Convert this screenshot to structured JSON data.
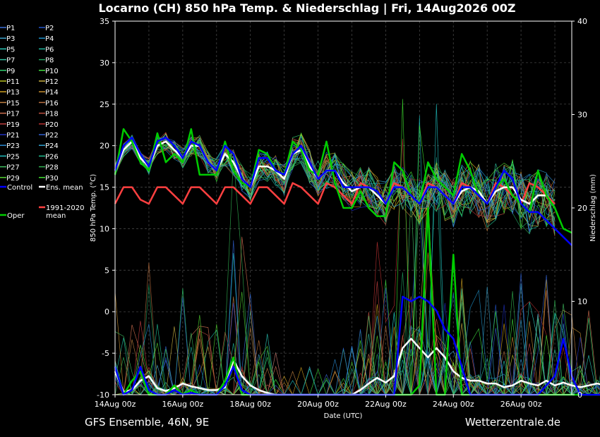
{
  "chart_data": {
    "type": "line",
    "title": "Locarno  (CH)  850 hPa Temp. & Niederschlag | Fri, 14Aug2026 00Z",
    "xlabel": "Date (UTC)",
    "ylabel": "850 hPa Temp. (°C)",
    "y2label": "Niederschlag (mm)",
    "footer_left": "GFS Ensemble, 46N, 9E",
    "footer_right": "Wetterzentrale.de",
    "ylim": [
      -10,
      35
    ],
    "y2lim": [
      0,
      40
    ],
    "yticks": [
      -10,
      -5,
      0,
      5,
      10,
      15,
      20,
      25,
      30,
      35
    ],
    "y2ticks": [
      0,
      10,
      20,
      30,
      40
    ],
    "xlim": [
      "14Aug 00z",
      "27Aug 12z"
    ],
    "xticks": [
      "14Aug 00z",
      "16Aug 00z",
      "18Aug 00z",
      "20Aug 00z",
      "22Aug 00z",
      "24Aug 00z",
      "26Aug 00z"
    ],
    "x_step": "6h",
    "grid": true,
    "legend_position": "left",
    "legend": [
      "P1",
      "P2",
      "P3",
      "P4",
      "P5",
      "P6",
      "P7",
      "P8",
      "P9",
      "P10",
      "P11",
      "P12",
      "P13",
      "P14",
      "P15",
      "P16",
      "P17",
      "P18",
      "P19",
      "P20",
      "P21",
      "P22",
      "P23",
      "P24",
      "P25",
      "P26",
      "P27",
      "P28",
      "P29",
      "P30",
      "Control",
      "Ens. mean",
      "Oper",
      "1991-2020 mean"
    ],
    "legend_colors": [
      "#3a6fd8",
      "#2255cc",
      "#3aa0c8",
      "#1e90c8",
      "#2ac8b8",
      "#20b8a0",
      "#30c0a0",
      "#20a060",
      "#30d070",
      "#40e040",
      "#b8c020",
      "#c8b040",
      "#d0a020",
      "#c89030",
      "#c08040",
      "#b87040",
      "#d07050",
      "#c05040",
      "#c04040",
      "#b83030",
      "#2030c0",
      "#3060d0",
      "#2888d0",
      "#30a0d0",
      "#20c0c0",
      "#20c090",
      "#40c060",
      "#30b050",
      "#50d030",
      "#40e030",
      "#0000ff",
      "#ffffff",
      "#00cc00",
      "#ff4040"
    ],
    "series": [
      {
        "name": "Control",
        "color": "#0000ff",
        "temp": [
          17,
          20,
          21,
          19,
          17.5,
          20.5,
          21,
          20,
          18.5,
          20.5,
          20,
          18,
          17,
          20,
          19,
          16,
          15,
          18.5,
          18.5,
          17,
          16.5,
          19,
          20,
          18,
          16,
          17,
          17,
          15,
          15,
          15,
          15,
          14.5,
          13,
          15,
          15,
          14,
          13,
          15,
          15,
          14,
          13,
          15,
          15,
          14,
          13,
          15,
          17,
          16,
          13,
          12,
          12,
          11,
          10,
          9,
          8
        ],
        "precip": [
          3,
          0,
          0.5,
          3,
          0.5,
          0,
          0,
          0.5,
          0,
          0.2,
          0,
          0,
          0,
          1,
          3,
          0.5,
          0,
          0,
          0,
          0,
          0,
          0,
          0,
          0,
          0,
          0,
          0,
          0,
          0,
          0,
          0,
          0,
          0,
          0,
          10.5,
          10,
          10.5,
          10,
          9,
          7,
          6,
          3,
          0,
          0,
          0,
          0,
          0,
          0,
          0,
          0,
          0,
          1,
          2,
          6,
          2,
          0,
          0,
          0,
          0,
          1,
          10,
          10.5,
          2,
          0,
          0,
          0,
          0,
          0,
          0,
          5,
          1,
          0.5,
          0,
          0,
          0
        ]
      },
      {
        "name": "Ens. mean",
        "color": "#ffffff",
        "temp": [
          17,
          19.5,
          20.5,
          18.5,
          17.5,
          20,
          20.5,
          19.5,
          18.5,
          20,
          20,
          18,
          17,
          19,
          18,
          16,
          15,
          17.5,
          17.5,
          17,
          16,
          19,
          19.5,
          17.5,
          16,
          17,
          17,
          15.5,
          14.5,
          15,
          15,
          14,
          13,
          15,
          15,
          14,
          13,
          15,
          15,
          14,
          13,
          14.5,
          15,
          14.5,
          13,
          14.5,
          15,
          15,
          13.5,
          13,
          14,
          14,
          12.5
        ],
        "precip": [
          2.5,
          0.3,
          0.5,
          1.5,
          2,
          0.7,
          0.4,
          0.7,
          1.2,
          0.9,
          0.7,
          0.5,
          0.5,
          0.8,
          3.7,
          2,
          1,
          0.5,
          0.2,
          0,
          0,
          0,
          0,
          0,
          0,
          0,
          0,
          0,
          0,
          0.5,
          1.2,
          1.8,
          1.3,
          2,
          5,
          6,
          5,
          4,
          5,
          4,
          2.5,
          1.8,
          1.5,
          1.5,
          1.2,
          1.2,
          0.8,
          1,
          1.5,
          1.2,
          1,
          1.5,
          1,
          1.3,
          1,
          0.8,
          1,
          1.2,
          1,
          0.7,
          1.2,
          1.5,
          1.2,
          1.3,
          1.8,
          1.8,
          1.2,
          2.4,
          1.5
        ]
      },
      {
        "name": "Oper",
        "color": "#00cc00",
        "temp": [
          16.5,
          22,
          20.5,
          18,
          17,
          21.5,
          18,
          19,
          18,
          22,
          16.5,
          16.5,
          16.5,
          20.5,
          17,
          15.5,
          15,
          19.5,
          19,
          17,
          16.5,
          20.5,
          19.5,
          17,
          16.5,
          20.5,
          15.5,
          12.5,
          12.5,
          14.5,
          12.5,
          11.5,
          11.5,
          18,
          17,
          14,
          13,
          18,
          16,
          15,
          14,
          19,
          17,
          14,
          13,
          15,
          16,
          14,
          13,
          12,
          17,
          14,
          12.5,
          10,
          9.5
        ],
        "precip": [
          3,
          0,
          1.5,
          2.5,
          0,
          0,
          0,
          1,
          0,
          0.5,
          0,
          0,
          0,
          1.5,
          4,
          0,
          0,
          0,
          0,
          0,
          0,
          0,
          0,
          0,
          0,
          0,
          0,
          0,
          0,
          0,
          0,
          0,
          0,
          0,
          0,
          0,
          1,
          20,
          0,
          0,
          15,
          0,
          0,
          0,
          0,
          0,
          0,
          0,
          0,
          0,
          0,
          0,
          0,
          0,
          0,
          0,
          0,
          0,
          0,
          0,
          0,
          0,
          0,
          8,
          17,
          4,
          0,
          0,
          0,
          0,
          0,
          0,
          0,
          0,
          0
        ]
      },
      {
        "name": "1991-2020 mean",
        "color": "#ff4040",
        "temp": [
          13,
          15,
          15,
          13.5,
          13,
          15,
          15,
          14,
          13,
          15,
          15,
          14,
          13,
          15,
          15,
          14,
          13,
          15,
          15,
          14,
          13,
          15.5,
          15,
          14,
          13,
          15.5,
          15,
          14,
          13,
          15.5,
          15,
          14,
          13,
          15.5,
          15,
          14,
          13,
          15.5,
          15,
          14,
          13,
          15.5,
          15,
          14,
          13,
          15.5,
          15,
          14,
          13,
          15.5,
          15,
          14,
          13
        ]
      }
    ]
  }
}
